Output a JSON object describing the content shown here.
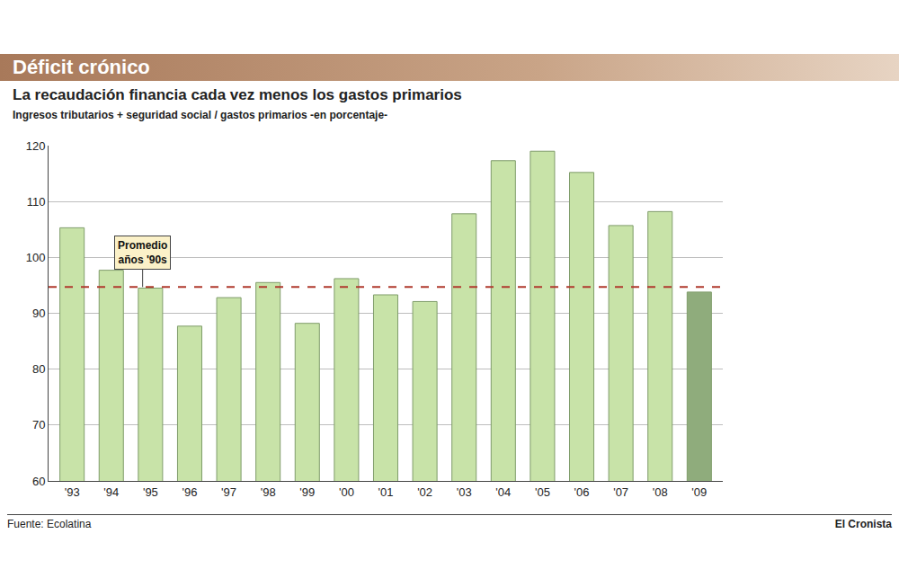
{
  "chart_data": {
    "type": "bar",
    "title": "Déficit crónico",
    "subtitle": "La recaudación financia cada vez menos los gastos primarios",
    "y_label": "Ingresos tributarios + seguridad social / gastos primarios -en porcentaje-",
    "categories": [
      "'93",
      "'94",
      "'95",
      "'96",
      "'97",
      "'98",
      "'99",
      "'00",
      "'01",
      "'02",
      "'03",
      "'04",
      "'05",
      "'06",
      "'07",
      "'08",
      "'09"
    ],
    "values": [
      105.3,
      97.7,
      94.5,
      87.7,
      92.8,
      95.5,
      88.2,
      96.2,
      93.3,
      92.1,
      107.8,
      117.3,
      119.0,
      115.2,
      105.7,
      108.2,
      93.8
    ],
    "colors": [
      "#c8e3a8",
      "#c8e3a8",
      "#c8e3a8",
      "#c8e3a8",
      "#c8e3a8",
      "#c8e3a8",
      "#c8e3a8",
      "#c8e3a8",
      "#c8e3a8",
      "#c8e3a8",
      "#c8e3a8",
      "#c8e3a8",
      "#c8e3a8",
      "#c8e3a8",
      "#c8e3a8",
      "#c8e3a8",
      "#8fac7c"
    ],
    "ylim": [
      60,
      120
    ],
    "yticks": [
      60,
      70,
      80,
      90,
      100,
      110,
      120
    ],
    "grid": true,
    "reference_line": {
      "value": 94.7,
      "label": "Promedio años '90s"
    },
    "source": "Fuente: Ecolatina",
    "publisher": "El Cronista"
  }
}
